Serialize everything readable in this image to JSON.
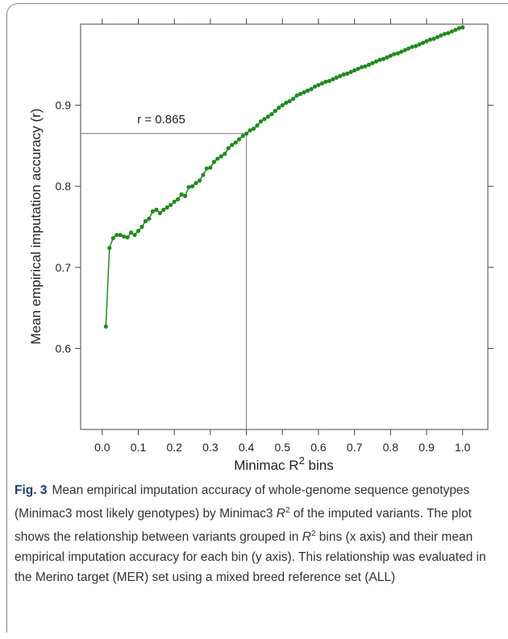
{
  "chart_data": {
    "type": "line",
    "ylabel": "Mean empirical imputation accuracy (r)",
    "xlabel": {
      "text": "Minimac R",
      "sup": "2",
      "after": " bins"
    },
    "annotation": "r = 0.865",
    "hline": 0.865,
    "vline": 0.4,
    "color": "#1f8a1f",
    "xlim": [
      -0.06,
      1.07
    ],
    "ylim": [
      0.5,
      1.0
    ],
    "xticks": [
      {
        "value": 0,
        "label": "0.0"
      },
      0.1,
      0.2,
      0.3,
      0.4,
      0.5,
      0.6,
      0.7,
      0.8,
      0.9,
      {
        "value": 1,
        "label": "1.0"
      }
    ],
    "yticks": [
      0.6,
      0.7,
      0.8,
      0.9
    ],
    "x": [
      0.01,
      0.02,
      0.03,
      0.04,
      0.05,
      0.06,
      0.07,
      0.08,
      0.09,
      0.1,
      0.11,
      0.12,
      0.13,
      0.14,
      0.15,
      0.16,
      0.17,
      0.18,
      0.19,
      0.2,
      0.21,
      0.22,
      0.23,
      0.24,
      0.25,
      0.26,
      0.27,
      0.28,
      0.29,
      0.3,
      0.31,
      0.32,
      0.33,
      0.34,
      0.35,
      0.36,
      0.37,
      0.38,
      0.39,
      0.4,
      0.41,
      0.42,
      0.43,
      0.44,
      0.45,
      0.46,
      0.47,
      0.48,
      0.49,
      0.5,
      0.51,
      0.52,
      0.53,
      0.54,
      0.55,
      0.56,
      0.57,
      0.58,
      0.59,
      0.6,
      0.61,
      0.62,
      0.63,
      0.64,
      0.65,
      0.66,
      0.67,
      0.68,
      0.69,
      0.7,
      0.71,
      0.72,
      0.73,
      0.74,
      0.75,
      0.76,
      0.77,
      0.78,
      0.79,
      0.8,
      0.81,
      0.82,
      0.83,
      0.84,
      0.85,
      0.86,
      0.87,
      0.88,
      0.89,
      0.9,
      0.91,
      0.92,
      0.93,
      0.94,
      0.95,
      0.96,
      0.97,
      0.98,
      0.99,
      1.0
    ],
    "values": [
      0.627,
      0.724,
      0.736,
      0.74,
      0.74,
      0.738,
      0.737,
      0.743,
      0.74,
      0.745,
      0.75,
      0.757,
      0.76,
      0.769,
      0.771,
      0.767,
      0.771,
      0.774,
      0.777,
      0.781,
      0.784,
      0.79,
      0.788,
      0.799,
      0.8,
      0.804,
      0.807,
      0.814,
      0.822,
      0.823,
      0.83,
      0.834,
      0.837,
      0.84,
      0.847,
      0.851,
      0.854,
      0.858,
      0.862,
      0.865,
      0.869,
      0.871,
      0.875,
      0.88,
      0.883,
      0.886,
      0.889,
      0.893,
      0.897,
      0.9,
      0.903,
      0.905,
      0.908,
      0.912,
      0.914,
      0.916,
      0.918,
      0.92,
      0.923,
      0.925,
      0.927,
      0.929,
      0.93,
      0.932,
      0.934,
      0.936,
      0.938,
      0.939,
      0.941,
      0.943,
      0.945,
      0.947,
      0.948,
      0.95,
      0.952,
      0.954,
      0.956,
      0.957,
      0.959,
      0.961,
      0.963,
      0.964,
      0.966,
      0.968,
      0.97,
      0.972,
      0.973,
      0.975,
      0.977,
      0.979,
      0.981,
      0.982,
      0.984,
      0.986,
      0.988,
      0.989,
      0.991,
      0.993,
      0.995,
      0.996
    ]
  },
  "caption": {
    "label": "Fig. 3",
    "t1": "Mean empirical imputation accuracy of whole-genome sequence genotypes (Minimac3 most likely genotypes) by Minimac3 ",
    "s1": "R",
    "p1": "2",
    "t2": " of the imputed variants. The plot shows the relationship between variants grouped in ",
    "s2": "R",
    "p2": "2",
    "t3": " bins (x axis) and their mean empirical imputation accuracy for each bin (y axis). This relationship was evaluated in the Merino target (MER) set using a mixed breed reference set (ALL)"
  }
}
